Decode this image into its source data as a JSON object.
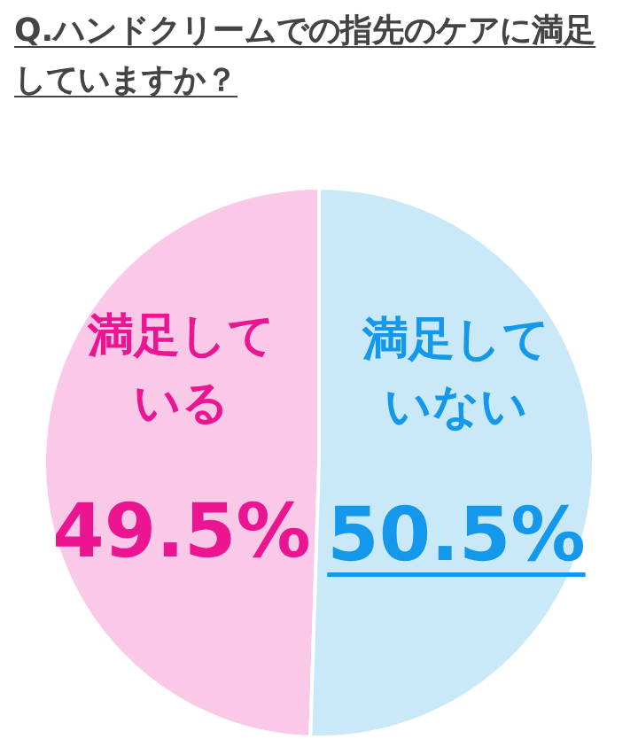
{
  "chart_data": {
    "type": "pie",
    "title": "Q.ハンドクリームでの指先のケアに満足していますか？",
    "categories": [
      "満足している",
      "満足していない"
    ],
    "values": [
      49.5,
      50.5
    ],
    "colors": [
      "#f9c9e7",
      "#c9e8f8"
    ],
    "value_labels": [
      "49.5%",
      "50.5%"
    ]
  }
}
